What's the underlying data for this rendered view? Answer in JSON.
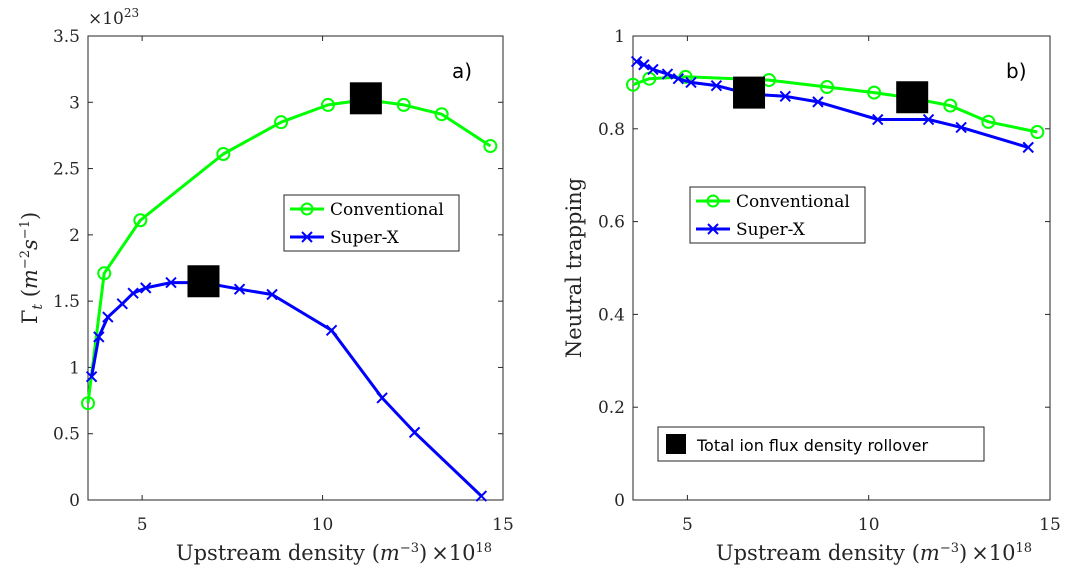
{
  "chart_data": [
    {
      "type": "line",
      "panel_label": "a)",
      "xlabel": "Upstream density (m^-3) ×10^18",
      "xlabel_parts": {
        "main": "Upstream density (",
        "m": "m",
        "exp": "−3",
        "close": ")",
        "mult": "×10",
        "mult_exp": "18"
      },
      "ylabel_parts": {
        "gamma": "Γ",
        "sub": "t",
        "open": " (",
        "m": "m",
        "mexp": "−2",
        "s": "s",
        "sexp": "−1",
        "close": ")"
      },
      "y_multiplier": {
        "base": "×10",
        "exp": "23"
      },
      "xlim": [
        3.5,
        15
      ],
      "ylim": [
        0,
        3.5
      ],
      "xticks": [
        5,
        10,
        15
      ],
      "xticklabels": [
        "5",
        "10",
        "15"
      ],
      "yticks": [
        0,
        0.5,
        1,
        1.5,
        2,
        2.5,
        3,
        3.5
      ],
      "yticklabels": [
        "0",
        "0.5",
        "1",
        "1.5",
        "2",
        "2.5",
        "3",
        "3.5"
      ],
      "series": [
        {
          "name": "Conventional",
          "color": "#00ff00",
          "marker": "circle",
          "x": [
            3.5,
            3.95,
            4.95,
            7.25,
            8.85,
            10.15,
            11.2,
            12.25,
            13.3,
            14.65
          ],
          "y": [
            0.73,
            1.71,
            2.11,
            2.61,
            2.85,
            2.98,
            3.02,
            2.98,
            2.91,
            2.67
          ]
        },
        {
          "name": "Super-X",
          "color": "#0000ff",
          "marker": "x",
          "x": [
            3.6,
            3.8,
            4.05,
            4.45,
            4.75,
            5.1,
            5.8,
            6.7,
            7.7,
            8.6,
            10.25,
            11.65,
            12.55,
            14.4
          ],
          "y": [
            0.93,
            1.23,
            1.38,
            1.48,
            1.56,
            1.6,
            1.64,
            1.64,
            1.59,
            1.55,
            1.28,
            0.77,
            0.51,
            0.03
          ]
        }
      ],
      "rollover_points": [
        {
          "x": 11.2,
          "y": 3.03
        },
        {
          "x": 6.7,
          "y": 1.65
        }
      ],
      "legend": {
        "placement": "center-right",
        "entries": [
          "Conventional",
          "Super-X"
        ]
      },
      "grid": false
    },
    {
      "type": "line",
      "panel_label": "b)",
      "xlabel": "Upstream density (m^-3) ×10^18",
      "xlabel_parts": {
        "main": "Upstream density (",
        "m": "m",
        "exp": "−3",
        "close": ")",
        "mult": "×10",
        "mult_exp": "18"
      },
      "ylabel": "Neutral trapping",
      "xlim": [
        3.5,
        15
      ],
      "ylim": [
        0,
        1
      ],
      "xticks": [
        5,
        10,
        15
      ],
      "xticklabels": [
        "5",
        "10",
        "15"
      ],
      "yticks": [
        0,
        0.2,
        0.4,
        0.6,
        0.8,
        1
      ],
      "yticklabels": [
        "0",
        "0.2",
        "0.4",
        "0.6",
        "0.8",
        "1"
      ],
      "series": [
        {
          "name": "Conventional",
          "color": "#00ff00",
          "marker": "circle",
          "x": [
            3.5,
            3.95,
            4.95,
            7.25,
            8.85,
            10.15,
            11.2,
            12.25,
            13.3,
            14.65
          ],
          "y": [
            0.895,
            0.908,
            0.912,
            0.905,
            0.89,
            0.878,
            0.866,
            0.85,
            0.815,
            0.793
          ]
        },
        {
          "name": "Super-X",
          "color": "#0000ff",
          "marker": "x",
          "x": [
            3.6,
            3.8,
            4.05,
            4.45,
            4.75,
            5.1,
            5.8,
            6.7,
            7.7,
            8.6,
            10.25,
            11.65,
            12.55,
            14.4
          ],
          "y": [
            0.945,
            0.938,
            0.928,
            0.918,
            0.908,
            0.9,
            0.893,
            0.875,
            0.87,
            0.858,
            0.82,
            0.82,
            0.803,
            0.76
          ]
        }
      ],
      "rollover_points": [
        {
          "x": 11.2,
          "y": 0.868
        },
        {
          "x": 6.7,
          "y": 0.878
        }
      ],
      "legend": {
        "placement": "center-left",
        "entries": [
          "Conventional",
          "Super-X"
        ]
      },
      "marker_legend": {
        "placement": "bottom-center",
        "label": "Total ion flux density rollover"
      },
      "grid": false
    }
  ]
}
